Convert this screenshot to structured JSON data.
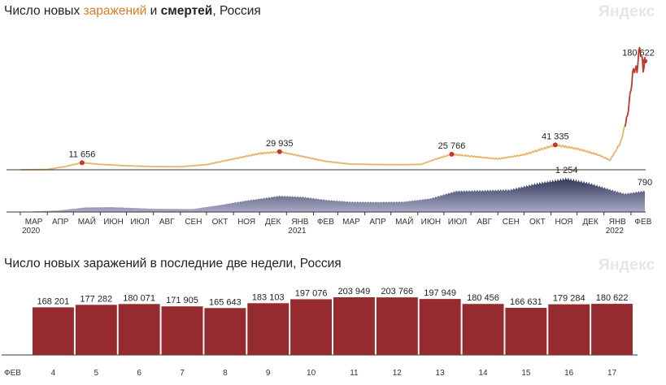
{
  "charts": {
    "top": {
      "title_part1": "Число новых ",
      "title_infections": "заражений",
      "title_part2": " и ",
      "title_deaths": "смертей",
      "title_part3": ", Россия",
      "logo": "Яндекс"
    },
    "bottom": {
      "title": "Число новых заражений в последние две недели, Россия",
      "logo": "Яндекс"
    }
  },
  "chart_data": [
    {
      "type": "line",
      "title": "Число новых заражений и смертей, Россия",
      "series": [
        {
          "name": "заражений",
          "color": "#e8b46a",
          "peak_color": "#c0392b",
          "points": [
            [
              "2020-03-01",
              0
            ],
            [
              "2020-04-01",
              500
            ],
            [
              "2020-04-20",
              5000
            ],
            [
              "2020-05-11",
              11656
            ],
            [
              "2020-06-01",
              9000
            ],
            [
              "2020-07-01",
              6600
            ],
            [
              "2020-08-01",
              5300
            ],
            [
              "2020-09-01",
              5000
            ],
            [
              "2020-10-01",
              8500
            ],
            [
              "2020-11-01",
              18000
            ],
            [
              "2020-12-01",
              27000
            ],
            [
              "2020-12-24",
              29935
            ],
            [
              "2021-01-20",
              22000
            ],
            [
              "2021-02-15",
              14000
            ],
            [
              "2021-03-15",
              9500
            ],
            [
              "2021-04-15",
              8700
            ],
            [
              "2021-05-15",
              8500
            ],
            [
              "2021-06-05",
              9000
            ],
            [
              "2021-06-20",
              17000
            ],
            [
              "2021-07-10",
              25766
            ],
            [
              "2021-08-01",
              22500
            ],
            [
              "2021-09-01",
              18000
            ],
            [
              "2021-10-01",
              25000
            ],
            [
              "2021-11-06",
              41335
            ],
            [
              "2021-12-01",
              35000
            ],
            [
              "2021-12-25",
              25000
            ],
            [
              "2022-01-08",
              16000
            ],
            [
              "2022-01-20",
              45000
            ],
            [
              "2022-01-28",
              90000
            ],
            [
              "2022-02-04",
              168201
            ],
            [
              "2022-02-08",
              165643
            ],
            [
              "2022-02-11",
              203949
            ],
            [
              "2022-02-14",
              180456
            ],
            [
              "2022-02-15",
              166631
            ],
            [
              "2022-02-17",
              180622
            ]
          ]
        },
        {
          "name": "смертей",
          "color": "#4a5079",
          "points": [
            [
              "2020-03-01",
              0
            ],
            [
              "2020-04-15",
              60
            ],
            [
              "2020-05-15",
              170
            ],
            [
              "2020-06-15",
              180
            ],
            [
              "2020-08-01",
              120
            ],
            [
              "2020-09-15",
              110
            ],
            [
              "2020-10-15",
              250
            ],
            [
              "2020-11-15",
              420
            ],
            [
              "2020-12-24",
              600
            ],
            [
              "2021-01-20",
              560
            ],
            [
              "2021-02-15",
              450
            ],
            [
              "2021-03-15",
              380
            ],
            [
              "2021-04-15",
              370
            ],
            [
              "2021-05-15",
              380
            ],
            [
              "2021-06-15",
              500
            ],
            [
              "2021-07-15",
              780
            ],
            [
              "2021-08-15",
              800
            ],
            [
              "2021-09-15",
              830
            ],
            [
              "2021-10-15",
              1060
            ],
            [
              "2021-11-19",
              1254
            ],
            [
              "2021-12-15",
              1080
            ],
            [
              "2022-01-10",
              820
            ],
            [
              "2022-01-25",
              680
            ],
            [
              "2022-02-17",
              790
            ]
          ]
        }
      ],
      "annotations": [
        {
          "series": "заражений",
          "date": "2020-05-11",
          "label": "11 656"
        },
        {
          "series": "заражений",
          "date": "2020-12-24",
          "label": "29 935"
        },
        {
          "series": "заражений",
          "date": "2021-07-10",
          "label": "25 766"
        },
        {
          "series": "заражений",
          "date": "2021-11-06",
          "label": "41 335"
        },
        {
          "series": "заражений",
          "date": "2022-02-17",
          "label": "180 622"
        },
        {
          "series": "смертей",
          "date": "2021-11-19",
          "label": "1 254"
        },
        {
          "series": "смертей",
          "date": "2022-02-17",
          "label": "790"
        }
      ],
      "x_ticks": [
        "МАР",
        "АПР",
        "МАЙ",
        "ИЮН",
        "ИЮЛ",
        "АВГ",
        "СЕН",
        "ОКТ",
        "НОЯ",
        "ДЕК",
        "ЯНВ",
        "ФЕВ",
        "МАР",
        "АПР",
        "МАЙ",
        "ИЮН",
        "ИЮЛ",
        "АВГ",
        "СЕН",
        "ОКТ",
        "НОЯ",
        "ДЕК",
        "ЯНВ",
        "ФЕВ"
      ],
      "x_tick_dates": [
        "2020-03-01",
        "2020-04-01",
        "2020-05-01",
        "2020-06-01",
        "2020-07-01",
        "2020-08-01",
        "2020-09-01",
        "2020-10-01",
        "2020-11-01",
        "2020-12-01",
        "2021-01-01",
        "2021-02-01",
        "2021-03-01",
        "2021-04-01",
        "2021-05-01",
        "2021-06-01",
        "2021-07-01",
        "2021-08-01",
        "2021-09-01",
        "2021-10-01",
        "2021-11-01",
        "2021-12-01",
        "2022-01-01",
        "2022-02-01"
      ],
      "year_labels": [
        {
          "date": "2020-03-01",
          "label": "2020"
        },
        {
          "date": "2021-01-01",
          "label": "2021"
        },
        {
          "date": "2022-01-01",
          "label": "2022"
        }
      ]
    },
    {
      "type": "bar",
      "title": "Число новых заражений в последние две недели, Россия",
      "month_label": "ФЕВ",
      "categories": [
        "4",
        "5",
        "6",
        "7",
        "8",
        "9",
        "10",
        "11",
        "12",
        "13",
        "14",
        "15",
        "16",
        "17"
      ],
      "values": [
        168201,
        177282,
        180071,
        171905,
        165643,
        183103,
        197076,
        203949,
        203766,
        197949,
        180456,
        166631,
        179284,
        180622
      ],
      "value_labels": [
        "168 201",
        "177 282",
        "180 071",
        "171 905",
        "165 643",
        "183 103",
        "197 076",
        "203 949",
        "203 766",
        "197 949",
        "180 456",
        "166 631",
        "179 284",
        "180 622"
      ],
      "weekend": [
        false,
        true,
        true,
        false,
        false,
        false,
        false,
        false,
        true,
        true,
        false,
        false,
        false,
        false
      ],
      "bar_color": "#962b2f",
      "weekend_color": "#c0392b"
    }
  ]
}
